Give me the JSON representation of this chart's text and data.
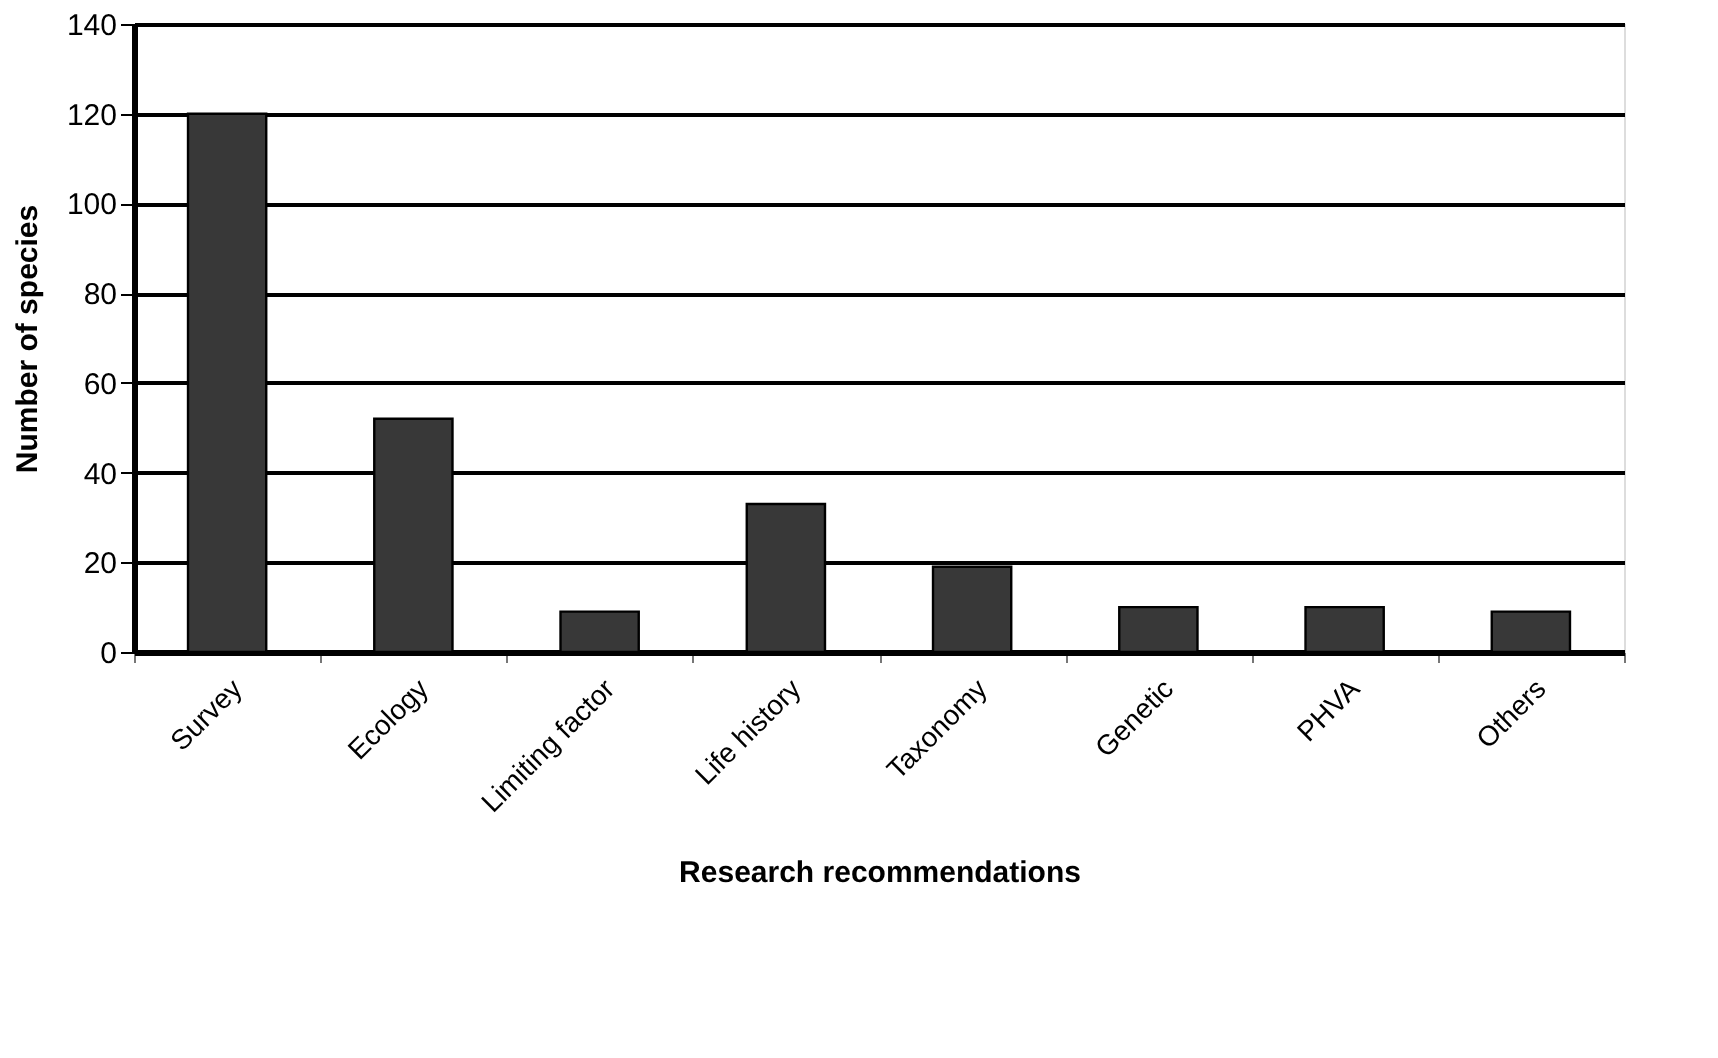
{
  "chart_data": {
    "type": "bar",
    "xlabel": "Research recommendations",
    "ylabel": "Number of species",
    "categories": [
      "Survey",
      "Ecology",
      "Limiting factor",
      "Life history",
      "Taxonomy",
      "Genetic",
      "PHVA",
      "Others"
    ],
    "values": [
      120,
      52,
      9,
      33,
      19,
      10,
      10,
      9
    ],
    "color": "#383838",
    "ylim": [
      0,
      140
    ],
    "yticks": [
      0,
      20,
      40,
      60,
      80,
      100,
      120,
      140
    ],
    "grid": "y"
  }
}
